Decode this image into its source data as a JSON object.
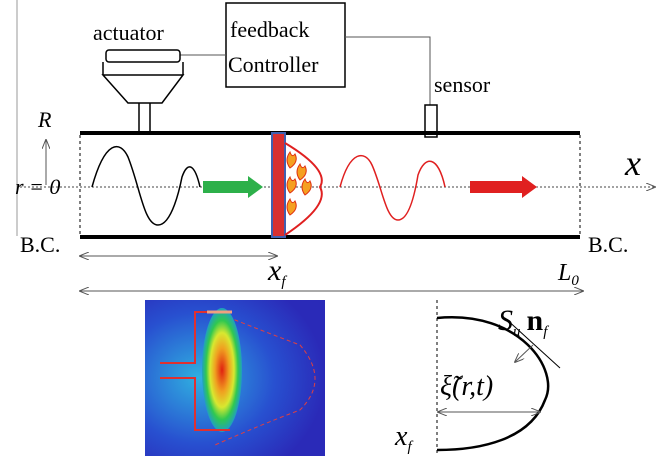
{
  "labels": {
    "actuator": "actuator",
    "controller": [
      "feedback",
      "Controller"
    ],
    "sensor": "sensor",
    "radial_axis": "R",
    "centerline": "r = 0",
    "axial_axis": "x",
    "bc_left": "B.C.",
    "bc_right": "B.C.",
    "flame_position": {
      "base": "x",
      "sub": "f"
    },
    "length": {
      "base": "L",
      "sub": "0"
    },
    "flame_speed": {
      "base": "S",
      "sub": "u"
    },
    "normal": {
      "base": "n",
      "sub": "f"
    },
    "displacement": "ξ̃(r,t)",
    "flame_anchor": {
      "base": "x",
      "sub": "f"
    }
  }
}
